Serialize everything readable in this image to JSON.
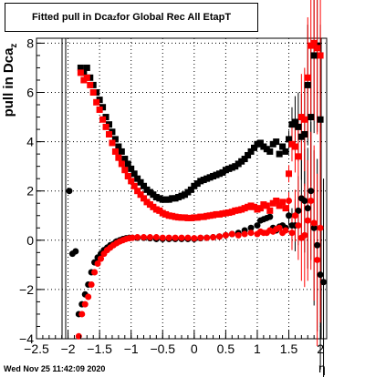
{
  "title": {
    "prefix": "Fitted pull in Dca",
    "subscript": "z",
    "suffix": " for Global Rec All EtapT"
  },
  "ylabel": {
    "main": "pull in Dca",
    "subscript": "z"
  },
  "xlabel": "η",
  "datestamp": "Wed Nov 25 11:42:09 2020",
  "colors": {
    "black_series": "#000000",
    "red_series": "#ff0000",
    "grid": "#000000"
  },
  "chart_data": {
    "type": "scatter",
    "title": "Fitted pull in Dca_z for Global Rec All EtapT",
    "xlabel": "η",
    "ylabel": "pull in Dca_z",
    "xlim": [
      -2.5,
      2.1
    ],
    "ylim": [
      -4,
      8.2
    ],
    "x_ticks": [
      -2.5,
      -2,
      -1.5,
      -1,
      -0.5,
      0,
      0.5,
      1,
      1.5,
      2
    ],
    "x_tick_labels": [
      "−2.5",
      "−2",
      "−1.5",
      "−1",
      "−0.5",
      "0",
      "0.5",
      "1",
      "1.5",
      "2"
    ],
    "y_ticks": [
      -4,
      -2,
      0,
      2,
      4,
      6,
      8
    ],
    "y_tick_labels": [
      "−4",
      "−2",
      "0",
      "2",
      "4",
      "6",
      "8"
    ],
    "grid": true,
    "series": [
      {
        "marker": "circle",
        "color": "#000000",
        "description": "black mean markers",
        "points": [
          [
            -1.98,
            2.0
          ],
          [
            -1.93,
            -0.55
          ],
          [
            -1.88,
            -0.45
          ],
          [
            -1.83,
            -3.0
          ],
          [
            -1.78,
            -2.6
          ],
          [
            -1.73,
            -2.2
          ],
          [
            -1.68,
            -1.8
          ],
          [
            -1.63,
            -1.3
          ],
          [
            -1.58,
            -0.9
          ],
          [
            -1.53,
            -0.7
          ],
          [
            -1.48,
            -0.55
          ],
          [
            -1.43,
            -0.4
          ],
          [
            -1.38,
            -0.3
          ],
          [
            -1.33,
            -0.2
          ],
          [
            -1.28,
            -0.15
          ],
          [
            -1.23,
            -0.05
          ],
          [
            -1.18,
            0.0
          ],
          [
            -1.13,
            0.05
          ],
          [
            -1.08,
            0.08
          ],
          [
            -1.03,
            0.1
          ],
          [
            -0.98,
            0.1
          ],
          [
            -0.9,
            0.1
          ],
          [
            -0.8,
            0.1
          ],
          [
            -0.7,
            0.08
          ],
          [
            -0.6,
            0.05
          ],
          [
            -0.5,
            0.05
          ],
          [
            -0.4,
            0.05
          ],
          [
            -0.3,
            0.05
          ],
          [
            -0.2,
            0.05
          ],
          [
            -0.1,
            0.05
          ],
          [
            0.0,
            0.05
          ],
          [
            0.1,
            0.08
          ],
          [
            0.2,
            0.1
          ],
          [
            0.3,
            0.12
          ],
          [
            0.4,
            0.15
          ],
          [
            0.5,
            0.2
          ],
          [
            0.6,
            0.25
          ],
          [
            0.7,
            0.3
          ],
          [
            0.8,
            0.4
          ],
          [
            0.9,
            0.5
          ],
          [
            1.0,
            0.6
          ],
          [
            1.05,
            0.8
          ],
          [
            1.1,
            0.85
          ],
          [
            1.15,
            0.9
          ],
          [
            1.2,
            0.95
          ],
          [
            1.25,
            0.5
          ],
          [
            1.3,
            0.4
          ],
          [
            1.35,
            0.55
          ],
          [
            1.4,
            0.6
          ],
          [
            1.45,
            0.5
          ],
          [
            1.5,
            1.0
          ],
          [
            1.55,
            0.6
          ],
          [
            1.6,
            0.6
          ],
          [
            1.65,
            1.2
          ],
          [
            1.7,
            1.7
          ],
          [
            1.75,
            1.6
          ],
          [
            1.8,
            1.3
          ],
          [
            1.85,
            2.0
          ],
          [
            1.9,
            0.5
          ],
          [
            1.95,
            -0.2
          ],
          [
            2.0,
            -1.4
          ],
          [
            2.05,
            -1.7
          ]
        ]
      },
      {
        "marker": "square",
        "color": "#000000",
        "description": "black width markers",
        "points": [
          [
            -1.8,
            7.0
          ],
          [
            -1.75,
            6.8
          ],
          [
            -1.7,
            7.0
          ],
          [
            -1.65,
            6.6
          ],
          [
            -1.6,
            6.3
          ],
          [
            -1.55,
            6.0
          ],
          [
            -1.5,
            5.7
          ],
          [
            -1.45,
            5.4
          ],
          [
            -1.4,
            5.0
          ],
          [
            -1.35,
            4.7
          ],
          [
            -1.3,
            4.4
          ],
          [
            -1.25,
            4.1
          ],
          [
            -1.2,
            3.8
          ],
          [
            -1.15,
            3.6
          ],
          [
            -1.1,
            3.3
          ],
          [
            -1.05,
            3.1
          ],
          [
            -1.0,
            2.9
          ],
          [
            -0.95,
            2.7
          ],
          [
            -0.9,
            2.5
          ],
          [
            -0.85,
            2.35
          ],
          [
            -0.8,
            2.2
          ],
          [
            -0.75,
            2.05
          ],
          [
            -0.7,
            1.95
          ],
          [
            -0.65,
            1.85
          ],
          [
            -0.6,
            1.75
          ],
          [
            -0.55,
            1.7
          ],
          [
            -0.5,
            1.65
          ],
          [
            -0.45,
            1.65
          ],
          [
            -0.4,
            1.65
          ],
          [
            -0.35,
            1.7
          ],
          [
            -0.3,
            1.7
          ],
          [
            -0.25,
            1.75
          ],
          [
            -0.2,
            1.8
          ],
          [
            -0.15,
            1.85
          ],
          [
            -0.1,
            1.95
          ],
          [
            -0.05,
            2.05
          ],
          [
            0.0,
            2.2
          ],
          [
            0.05,
            2.3
          ],
          [
            0.1,
            2.4
          ],
          [
            0.15,
            2.45
          ],
          [
            0.2,
            2.5
          ],
          [
            0.25,
            2.55
          ],
          [
            0.3,
            2.6
          ],
          [
            0.35,
            2.65
          ],
          [
            0.4,
            2.7
          ],
          [
            0.45,
            2.75
          ],
          [
            0.5,
            2.85
          ],
          [
            0.55,
            2.9
          ],
          [
            0.6,
            2.95
          ],
          [
            0.65,
            3.0
          ],
          [
            0.7,
            3.1
          ],
          [
            0.75,
            3.2
          ],
          [
            0.8,
            3.3
          ],
          [
            0.85,
            3.45
          ],
          [
            0.9,
            3.6
          ],
          [
            0.95,
            3.75
          ],
          [
            1.0,
            3.9
          ],
          [
            1.05,
            3.95
          ],
          [
            1.1,
            3.8
          ],
          [
            1.15,
            3.7
          ],
          [
            1.2,
            3.6
          ],
          [
            1.25,
            3.9
          ],
          [
            1.3,
            4.0
          ],
          [
            1.35,
            3.5
          ],
          [
            1.4,
            3.8
          ],
          [
            1.45,
            3.6
          ],
          [
            1.5,
            4.1
          ],
          [
            1.55,
            4.7
          ],
          [
            1.6,
            4.8
          ],
          [
            1.65,
            4.6
          ],
          [
            1.7,
            4.2
          ],
          [
            1.75,
            4.3
          ],
          [
            1.8,
            6.3
          ],
          [
            1.85,
            5.0
          ],
          [
            1.9,
            7.5
          ],
          [
            1.95,
            7.9
          ],
          [
            2.0,
            4.9
          ]
        ]
      },
      {
        "marker": "circle",
        "color": "#ff0000",
        "description": "red mean markers",
        "points": [
          [
            -1.83,
            -3.9
          ],
          [
            -1.78,
            -3.0
          ],
          [
            -1.73,
            -2.6
          ],
          [
            -1.68,
            -2.3
          ],
          [
            -1.63,
            -1.8
          ],
          [
            -1.58,
            -1.3
          ],
          [
            -1.53,
            -0.95
          ],
          [
            -1.48,
            -0.75
          ],
          [
            -1.43,
            -0.55
          ],
          [
            -1.38,
            -0.4
          ],
          [
            -1.33,
            -0.3
          ],
          [
            -1.28,
            -0.2
          ],
          [
            -1.23,
            -0.12
          ],
          [
            -1.18,
            -0.05
          ],
          [
            -1.13,
            0.0
          ],
          [
            -1.08,
            0.05
          ],
          [
            -1.03,
            0.08
          ],
          [
            -0.98,
            0.1
          ],
          [
            -0.9,
            0.12
          ],
          [
            -0.8,
            0.12
          ],
          [
            -0.7,
            0.12
          ],
          [
            -0.6,
            0.12
          ],
          [
            -0.5,
            0.1
          ],
          [
            -0.4,
            0.1
          ],
          [
            -0.3,
            0.1
          ],
          [
            -0.2,
            0.1
          ],
          [
            -0.1,
            0.1
          ],
          [
            0.0,
            0.08
          ],
          [
            0.1,
            0.1
          ],
          [
            0.2,
            0.1
          ],
          [
            0.3,
            0.12
          ],
          [
            0.4,
            0.15
          ],
          [
            0.5,
            0.2
          ],
          [
            0.6,
            0.25
          ],
          [
            0.7,
            0.2
          ],
          [
            0.8,
            0.25
          ],
          [
            0.9,
            0.3
          ],
          [
            1.0,
            0.25
          ],
          [
            1.05,
            0.35
          ],
          [
            1.1,
            0.3
          ],
          [
            1.15,
            0.3
          ],
          [
            1.2,
            0.4
          ],
          [
            1.25,
            0.35
          ],
          [
            1.3,
            0.45
          ],
          [
            1.35,
            0.5
          ],
          [
            1.4,
            0.3
          ],
          [
            1.45,
            0.4
          ],
          [
            1.5,
            1.6
          ],
          [
            1.55,
            0.3
          ],
          [
            1.6,
            1.0
          ],
          [
            1.65,
            0.6
          ],
          [
            1.7,
            0.1
          ],
          [
            1.75,
            0.2
          ],
          [
            1.8,
            0.8
          ],
          [
            1.85,
            1.6
          ],
          [
            1.9,
            0.7
          ],
          [
            1.95,
            -0.8
          ],
          [
            2.0,
            0.5
          ]
        ]
      },
      {
        "marker": "square",
        "color": "#ff0000",
        "description": "red width markers",
        "points": [
          [
            -1.8,
            6.8
          ],
          [
            -1.75,
            6.5
          ],
          [
            -1.7,
            6.6
          ],
          [
            -1.65,
            6.3
          ],
          [
            -1.6,
            6.0
          ],
          [
            -1.55,
            5.6
          ],
          [
            -1.5,
            5.3
          ],
          [
            -1.45,
            4.9
          ],
          [
            -1.4,
            4.6
          ],
          [
            -1.35,
            4.3
          ],
          [
            -1.3,
            3.95
          ],
          [
            -1.25,
            3.6
          ],
          [
            -1.2,
            3.35
          ],
          [
            -1.15,
            3.1
          ],
          [
            -1.1,
            2.85
          ],
          [
            -1.05,
            2.6
          ],
          [
            -1.0,
            2.4
          ],
          [
            -0.95,
            2.2
          ],
          [
            -0.9,
            2.0
          ],
          [
            -0.85,
            1.85
          ],
          [
            -0.8,
            1.7
          ],
          [
            -0.75,
            1.55
          ],
          [
            -0.7,
            1.45
          ],
          [
            -0.65,
            1.35
          ],
          [
            -0.6,
            1.25
          ],
          [
            -0.55,
            1.2
          ],
          [
            -0.5,
            1.1
          ],
          [
            -0.45,
            1.05
          ],
          [
            -0.4,
            1.0
          ],
          [
            -0.35,
            0.98
          ],
          [
            -0.3,
            0.95
          ],
          [
            -0.25,
            0.93
          ],
          [
            -0.2,
            0.92
          ],
          [
            -0.15,
            0.92
          ],
          [
            -0.1,
            0.9
          ],
          [
            -0.05,
            0.9
          ],
          [
            0.0,
            0.92
          ],
          [
            0.05,
            0.92
          ],
          [
            0.1,
            0.95
          ],
          [
            0.15,
            0.95
          ],
          [
            0.2,
            0.98
          ],
          [
            0.25,
            1.0
          ],
          [
            0.3,
            1.02
          ],
          [
            0.35,
            1.05
          ],
          [
            0.4,
            1.05
          ],
          [
            0.45,
            1.08
          ],
          [
            0.5,
            1.1
          ],
          [
            0.55,
            1.12
          ],
          [
            0.6,
            1.15
          ],
          [
            0.65,
            1.2
          ],
          [
            0.7,
            1.22
          ],
          [
            0.75,
            1.25
          ],
          [
            0.8,
            1.3
          ],
          [
            0.85,
            1.35
          ],
          [
            0.9,
            1.4
          ],
          [
            0.95,
            1.35
          ],
          [
            1.0,
            1.25
          ],
          [
            1.05,
            1.3
          ],
          [
            1.1,
            1.45
          ],
          [
            1.15,
            1.4
          ],
          [
            1.2,
            1.2
          ],
          [
            1.25,
            1.5
          ],
          [
            1.3,
            1.6
          ],
          [
            1.35,
            1.4
          ],
          [
            1.4,
            1.55
          ],
          [
            1.45,
            1.3
          ],
          [
            1.5,
            2.7
          ],
          [
            1.55,
            3.9
          ],
          [
            1.6,
            3.8
          ],
          [
            1.65,
            3.4
          ],
          [
            1.7,
            5.0
          ],
          [
            1.75,
            4.9
          ],
          [
            1.8,
            6.6
          ],
          [
            1.85,
            7.9
          ],
          [
            1.9,
            8.0
          ],
          [
            1.95,
            7.8
          ],
          [
            2.0,
            7.5
          ]
        ]
      }
    ]
  }
}
